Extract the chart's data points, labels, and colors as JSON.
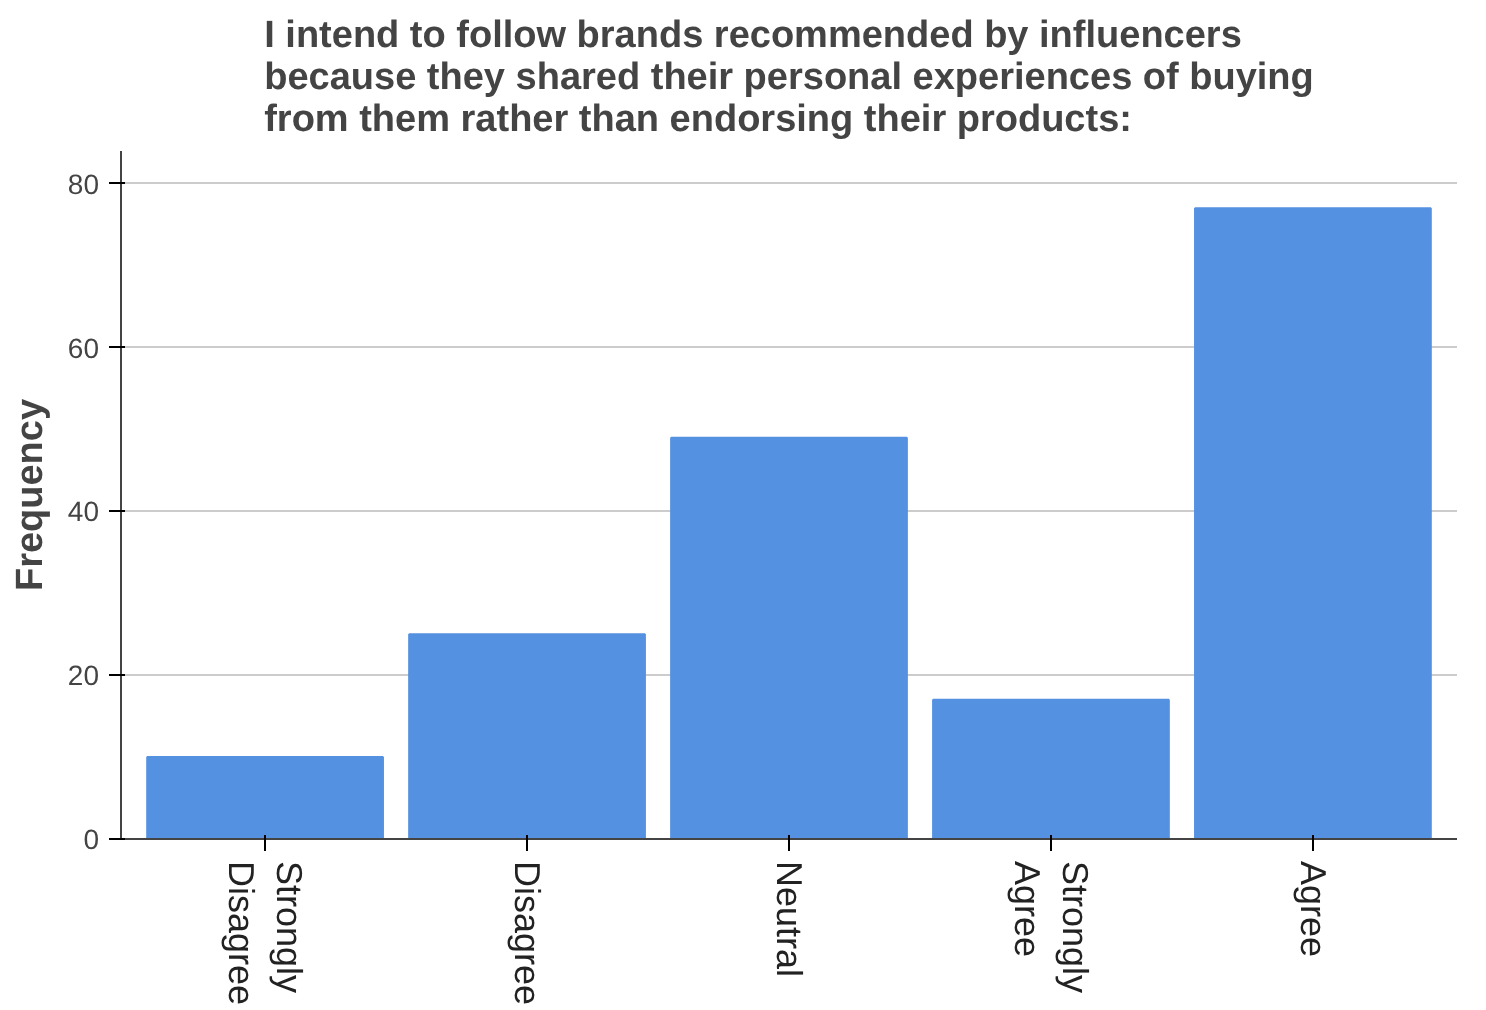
{
  "chart_data": {
    "type": "bar",
    "title": "I intend to follow brands recommended by influencers\nbecause they shared their personal experiences of buying\nfrom them rather than endorsing their products:",
    "ylabel": "Frequency",
    "categories": [
      "Strongly Disagree",
      "Disagree",
      "Neutral",
      "Strongly Agree",
      "Agree"
    ],
    "values": [
      10,
      25,
      49,
      17,
      77
    ],
    "color": "#5591e1",
    "ylim": [
      0,
      84
    ],
    "yticks": [
      0,
      20,
      40,
      60,
      80
    ],
    "grid": "y"
  }
}
